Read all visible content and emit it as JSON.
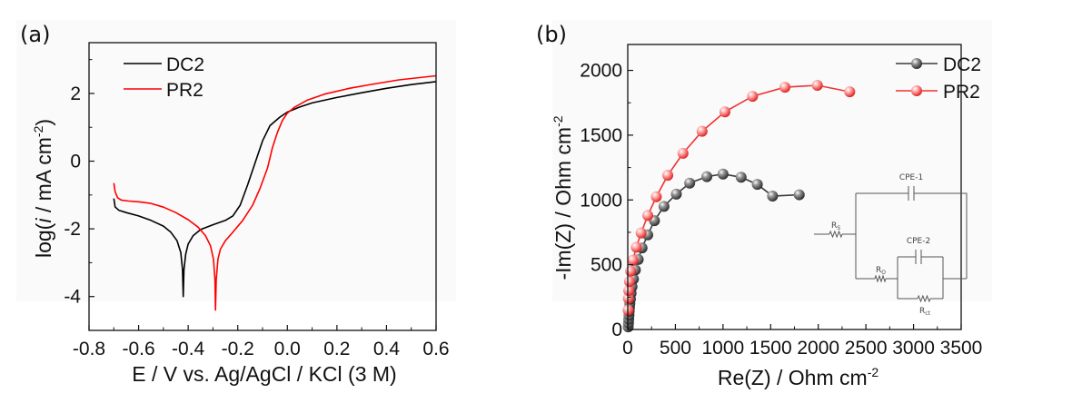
{
  "figure": {
    "panels": [
      "(a)",
      "(b)"
    ]
  },
  "chart_data": [
    {
      "type": "line",
      "panel_label": "(a)",
      "title": "",
      "xlabel": "E / V vs. Ag/AgCl / KCl (3 M)",
      "ylabel_parts": {
        "prefix": "log(",
        "italic": "i",
        "suffix": " / mA cm",
        "sup": "-2",
        "close": ")"
      },
      "xlim": [
        -0.8,
        0.6
      ],
      "ylim": [
        -5,
        3.5
      ],
      "xticks": [
        -0.8,
        -0.6,
        -0.4,
        -0.2,
        0.0,
        0.2,
        0.4,
        0.6
      ],
      "xtick_labels": [
        "-0.8",
        "-0.6",
        "-0.4",
        "-0.2",
        "0.0",
        "0.2",
        "0.4",
        "0.6"
      ],
      "xminor": [
        -0.7,
        -0.5,
        -0.3,
        -0.1,
        0.1,
        0.3,
        0.5
      ],
      "yticks": [
        -4,
        -2,
        0,
        2
      ],
      "ytick_labels": [
        "-4",
        "-2",
        "0",
        "2"
      ],
      "yminor": [
        -3,
        -1,
        1,
        3
      ],
      "grid": false,
      "legend": {
        "position": "top-left",
        "entries": [
          "DC2",
          "PR2"
        ]
      },
      "series": [
        {
          "name": "DC2",
          "color": "#000000",
          "points": [
            [
              -0.7,
              -1.1
            ],
            [
              -0.695,
              -1.35
            ],
            [
              -0.68,
              -1.45
            ],
            [
              -0.65,
              -1.52
            ],
            [
              -0.6,
              -1.62
            ],
            [
              -0.55,
              -1.75
            ],
            [
              -0.5,
              -1.92
            ],
            [
              -0.47,
              -2.1
            ],
            [
              -0.445,
              -2.35
            ],
            [
              -0.43,
              -2.7
            ],
            [
              -0.423,
              -3.2
            ],
            [
              -0.42,
              -4.0
            ],
            [
              -0.417,
              -3.2
            ],
            [
              -0.41,
              -2.75
            ],
            [
              -0.4,
              -2.45
            ],
            [
              -0.38,
              -2.2
            ],
            [
              -0.35,
              -2.02
            ],
            [
              -0.3,
              -1.88
            ],
            [
              -0.25,
              -1.75
            ],
            [
              -0.22,
              -1.62
            ],
            [
              -0.19,
              -1.3
            ],
            [
              -0.16,
              -0.7
            ],
            [
              -0.13,
              -0.05
            ],
            [
              -0.1,
              0.6
            ],
            [
              -0.07,
              1.05
            ],
            [
              -0.03,
              1.3
            ],
            [
              0.0,
              1.45
            ],
            [
              0.05,
              1.6
            ],
            [
              0.1,
              1.72
            ],
            [
              0.2,
              1.88
            ],
            [
              0.3,
              2.02
            ],
            [
              0.4,
              2.15
            ],
            [
              0.5,
              2.26
            ],
            [
              0.6,
              2.35
            ]
          ]
        },
        {
          "name": "PR2",
          "color": "#ff0000",
          "points": [
            [
              -0.7,
              -0.65
            ],
            [
              -0.695,
              -0.9
            ],
            [
              -0.685,
              -1.08
            ],
            [
              -0.67,
              -1.15
            ],
            [
              -0.64,
              -1.18
            ],
            [
              -0.6,
              -1.2
            ],
            [
              -0.55,
              -1.25
            ],
            [
              -0.5,
              -1.36
            ],
            [
              -0.45,
              -1.52
            ],
            [
              -0.4,
              -1.73
            ],
            [
              -0.36,
              -1.95
            ],
            [
              -0.33,
              -2.2
            ],
            [
              -0.31,
              -2.5
            ],
            [
              -0.298,
              -2.9
            ],
            [
              -0.292,
              -3.5
            ],
            [
              -0.29,
              -4.4
            ],
            [
              -0.287,
              -3.5
            ],
            [
              -0.28,
              -2.9
            ],
            [
              -0.27,
              -2.6
            ],
            [
              -0.25,
              -2.35
            ],
            [
              -0.22,
              -2.1
            ],
            [
              -0.18,
              -1.75
            ],
            [
              -0.14,
              -1.3
            ],
            [
              -0.11,
              -0.8
            ],
            [
              -0.08,
              -0.2
            ],
            [
              -0.06,
              0.4
            ],
            [
              -0.04,
              0.85
            ],
            [
              -0.02,
              1.2
            ],
            [
              0.0,
              1.42
            ],
            [
              0.03,
              1.6
            ],
            [
              0.08,
              1.8
            ],
            [
              0.15,
              1.98
            ],
            [
              0.25,
              2.15
            ],
            [
              0.35,
              2.28
            ],
            [
              0.45,
              2.4
            ],
            [
              0.6,
              2.52
            ]
          ]
        }
      ]
    },
    {
      "type": "scatter",
      "panel_label": "(b)",
      "title": "",
      "xlabel": "Re(Z) / Ohm cm",
      "xlabel_sup": "-2",
      "ylabel": "-Im(Z) / Ohm cm",
      "ylabel_sup": "-2",
      "xlim": [
        0,
        3500
      ],
      "ylim": [
        0,
        2200
      ],
      "xticks": [
        0,
        500,
        1000,
        1500,
        2000,
        2500,
        3000,
        3500
      ],
      "xtick_labels": [
        "0",
        "500",
        "1000",
        "1500",
        "2000",
        "2500",
        "3000",
        "3500"
      ],
      "xminor": [
        250,
        750,
        1250,
        1750,
        2250,
        2750,
        3250
      ],
      "yticks": [
        0,
        500,
        1000,
        1500,
        2000
      ],
      "ytick_labels": [
        "0",
        "500",
        "1000",
        "1500",
        "2000"
      ],
      "yminor": [
        250,
        750,
        1250,
        1750
      ],
      "grid": false,
      "legend": {
        "position": "top-right",
        "entries": [
          "DC2",
          "PR2"
        ]
      },
      "series": [
        {
          "name": "DC2",
          "color": "#3a3a3a",
          "marker": "sphere",
          "points": [
            [
              5,
              20
            ],
            [
              8,
              50
            ],
            [
              10,
              80
            ],
            [
              13,
              110
            ],
            [
              15,
              140
            ],
            [
              18,
              170
            ],
            [
              22,
              200
            ],
            [
              28,
              235
            ],
            [
              35,
              280
            ],
            [
              45,
              330
            ],
            [
              60,
              390
            ],
            [
              80,
              460
            ],
            [
              110,
              540
            ],
            [
              150,
              630
            ],
            [
              210,
              730
            ],
            [
              280,
              840
            ],
            [
              380,
              950
            ],
            [
              510,
              1045
            ],
            [
              650,
              1130
            ],
            [
              830,
              1180
            ],
            [
              1000,
              1200
            ],
            [
              1190,
              1175
            ],
            [
              1360,
              1120
            ],
            [
              1520,
              1030
            ],
            [
              1800,
              1040
            ]
          ]
        },
        {
          "name": "PR2",
          "color": "#ee3333",
          "marker": "sphere",
          "points": [
            [
              3,
              150
            ],
            [
              6,
              240
            ],
            [
              10,
              300
            ],
            [
              18,
              370
            ],
            [
              30,
              450
            ],
            [
              55,
              535
            ],
            [
              90,
              635
            ],
            [
              140,
              745
            ],
            [
              210,
              880
            ],
            [
              300,
              1025
            ],
            [
              420,
              1190
            ],
            [
              580,
              1360
            ],
            [
              780,
              1530
            ],
            [
              1020,
              1680
            ],
            [
              1310,
              1800
            ],
            [
              1650,
              1870
            ],
            [
              1990,
              1885
            ],
            [
              2330,
              1835
            ]
          ]
        }
      ],
      "inset_circuit": {
        "labels": {
          "cpe1": "CPE-1",
          "cpe2": "CPE-2",
          "rs_main": "R",
          "rs_sub": "S",
          "ro_main": "R",
          "ro_sub": "O",
          "rct_main": "R",
          "rct_sub": "ct"
        }
      }
    }
  ]
}
